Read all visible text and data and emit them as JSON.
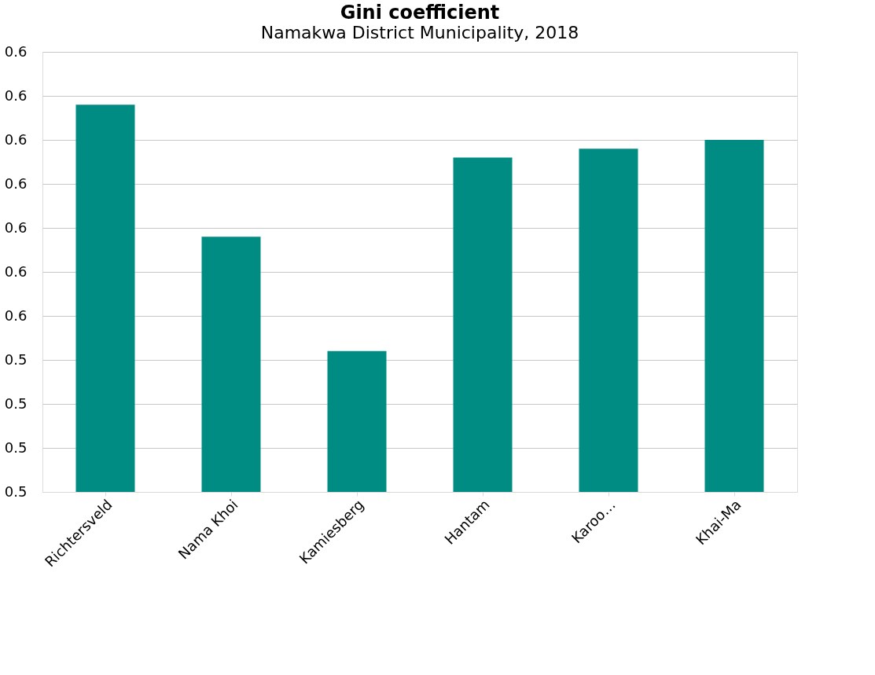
{
  "chart_data": {
    "type": "bar",
    "title": "Gini coefficient",
    "subtitle": "Namakwa District Municipality, 2018",
    "categories": [
      "Richtersveld",
      "Nama Khoi",
      "Kamiesberg",
      "Hantam",
      "Karoo…",
      "Khai-Ma"
    ],
    "values": [
      0.574,
      0.559,
      0.546,
      0.568,
      0.569,
      0.57
    ],
    "color": "#008c82",
    "ylim": [
      0.53,
      0.58
    ],
    "yticks": [
      {
        "value": 0.53,
        "label": "0.5"
      },
      {
        "value": 0.535,
        "label": "0.5"
      },
      {
        "value": 0.54,
        "label": "0.5"
      },
      {
        "value": 0.545,
        "label": "0.5"
      },
      {
        "value": 0.55,
        "label": "0.6"
      },
      {
        "value": 0.555,
        "label": "0.6"
      },
      {
        "value": 0.56,
        "label": "0.6"
      },
      {
        "value": 0.565,
        "label": "0.6"
      },
      {
        "value": 0.57,
        "label": "0.6"
      },
      {
        "value": 0.575,
        "label": "0.6"
      },
      {
        "value": 0.58,
        "label": "0.6"
      }
    ],
    "grid": "y"
  }
}
